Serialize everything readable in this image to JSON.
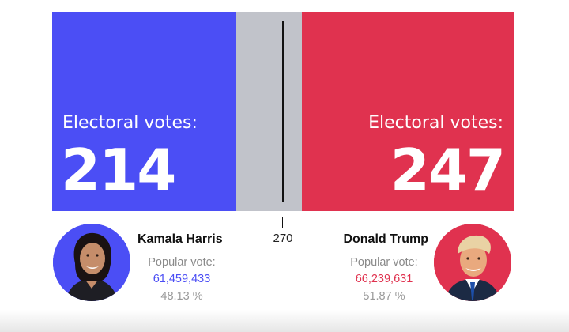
{
  "colors": {
    "democrat": "#4b4ef5",
    "republican": "#e0324f",
    "uncalled": "#c1c3ca"
  },
  "left": {
    "ev_label": "Electoral votes:",
    "ev_value": "214",
    "name": "Kamala Harris",
    "popular_label": "Popular vote:",
    "popular_value": "61,459,433",
    "popular_pct": "48.13 %"
  },
  "right": {
    "ev_label": "Electoral votes:",
    "ev_value": "247",
    "name": "Donald Trump",
    "popular_label": "Popular vote:",
    "popular_value": "66,239,631",
    "popular_pct": "51.87 %"
  },
  "threshold": {
    "label": "270"
  }
}
